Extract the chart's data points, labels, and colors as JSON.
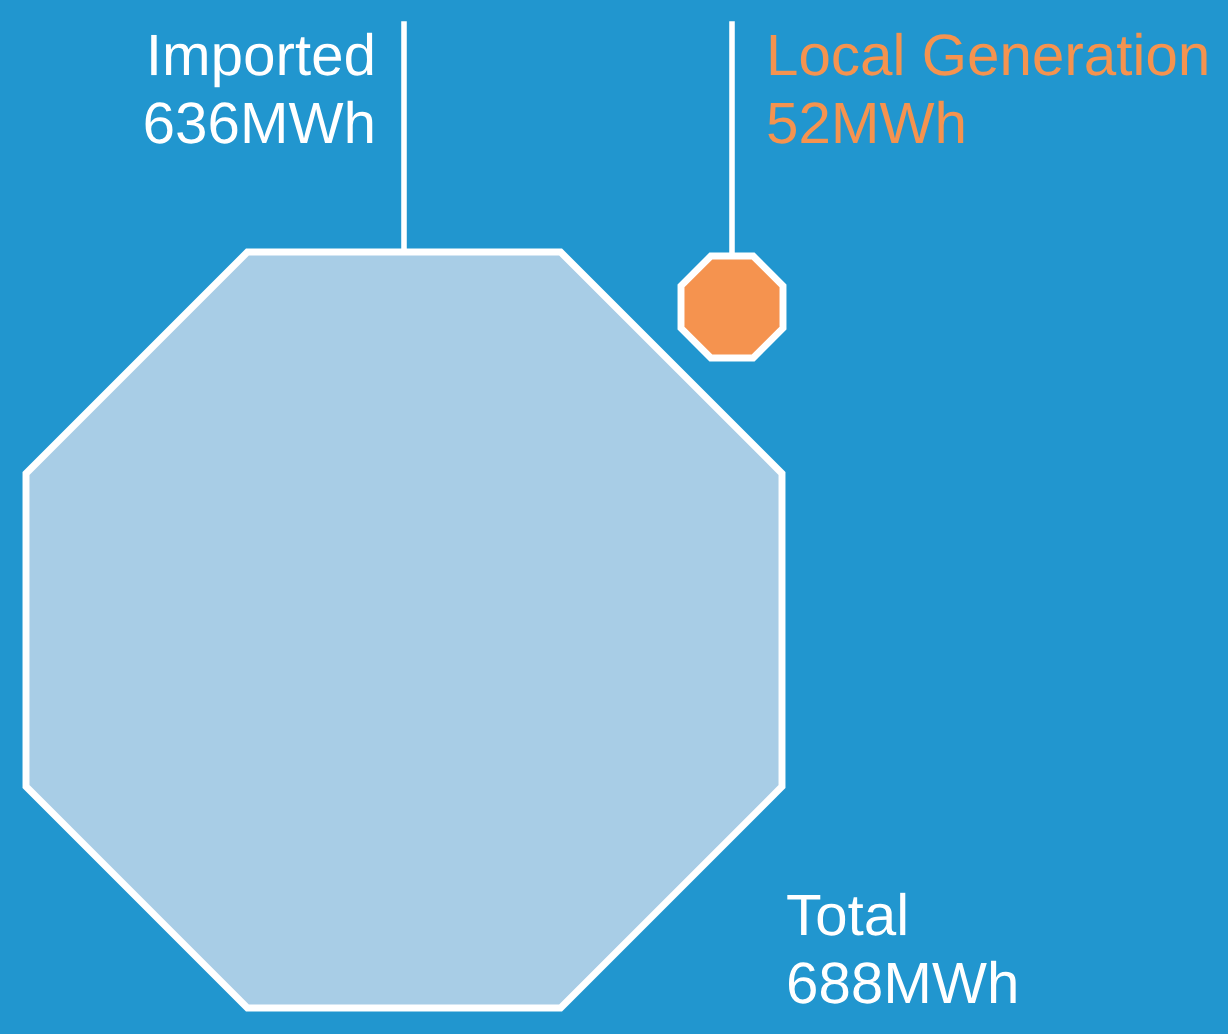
{
  "chart_data": {
    "type": "other",
    "categories": [
      "Imported",
      "Local Generation",
      "Total"
    ],
    "values": [
      636,
      52,
      688
    ],
    "value_labels": [
      "636MWh",
      "52MWh",
      "688MWh"
    ],
    "colors": [
      "#a8cde6",
      "#f5934f",
      null
    ]
  }
}
